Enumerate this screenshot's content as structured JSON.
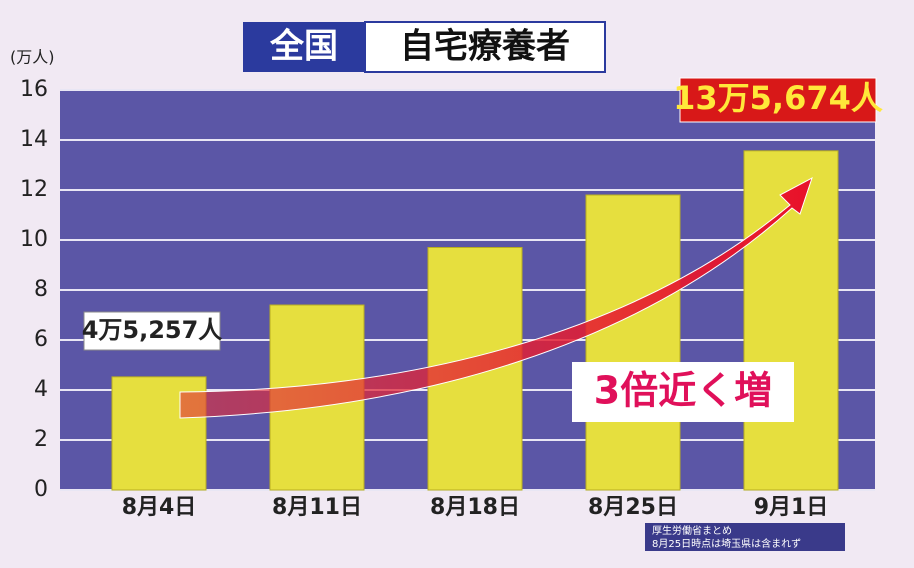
{
  "chart_data": {
    "type": "bar",
    "title": "全国",
    "subtitle": "自宅療養者",
    "y_unit": "(万人)",
    "categories": [
      "8月4日",
      "8月11日",
      "8月18日",
      "8月25日",
      "9月1日"
    ],
    "values": [
      4.5257,
      7.4,
      9.7,
      11.8,
      13.5674
    ],
    "value_labels": [
      "4万5,257人",
      null,
      null,
      null,
      "13万5,674人"
    ],
    "color": "#e6df3e",
    "ylim": [
      0,
      16
    ],
    "yticks": [
      0,
      2,
      4,
      6,
      8,
      10,
      12,
      14,
      16
    ],
    "grid": true,
    "annotation": "3倍近く増",
    "notes": [
      "厚生労働省まとめ",
      "8月25日時点は埼玉県は含まれず"
    ]
  }
}
